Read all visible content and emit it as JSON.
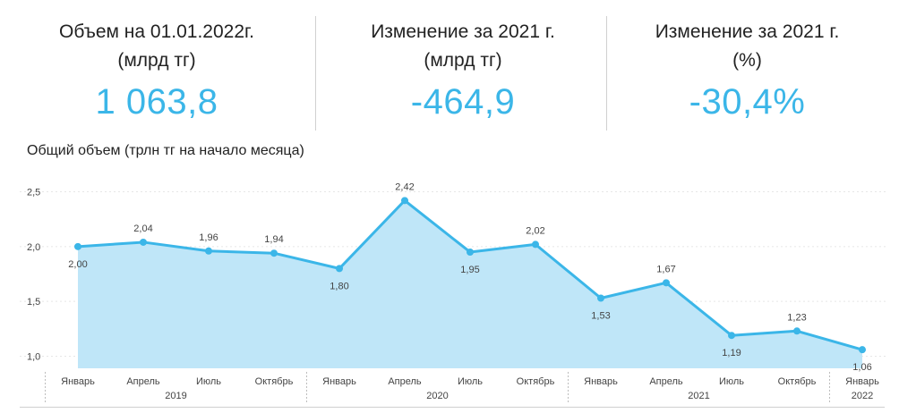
{
  "kpis": [
    {
      "label_line1": "Объем на 01.01.2022г.",
      "label_line2": "(млрд тг)",
      "value": "1 063,8"
    },
    {
      "label_line1": "Изменение за 2021 г.",
      "label_line2": "(млрд тг)",
      "value": "-464,9"
    },
    {
      "label_line1": "Изменение за 2021 г.",
      "label_line2": "(%)",
      "value": "-30,4%"
    }
  ],
  "chart_title": "Общий объем (трлн тг на начало месяца)",
  "colors": {
    "accent": "#3bb6e8",
    "area_fill": "#bfe6f8",
    "text": "#222222"
  },
  "chart_data": {
    "type": "area",
    "title": "Общий объем (трлн тг на начало месяца)",
    "x": [
      "Январь",
      "Апрель",
      "Июль",
      "Октябрь",
      "Январь",
      "Апрель",
      "Июль",
      "Октябрь",
      "Январь",
      "Апрель",
      "Июль",
      "Октябрь",
      "Январь"
    ],
    "year_groups": [
      {
        "year": "2019",
        "count": 4
      },
      {
        "year": "2020",
        "count": 4
      },
      {
        "year": "2021",
        "count": 4
      },
      {
        "year": "2022",
        "count": 1
      }
    ],
    "values": [
      2.0,
      2.04,
      1.96,
      1.94,
      1.8,
      2.42,
      1.95,
      2.02,
      1.53,
      1.67,
      1.19,
      1.23,
      1.06
    ],
    "value_labels": [
      "2,00",
      "2,04",
      "1,96",
      "1,94",
      "1,80",
      "2,42",
      "1,95",
      "2,02",
      "1,53",
      "1,67",
      "1,19",
      "1,23",
      "1,06"
    ],
    "label_positions": [
      "below",
      "above",
      "above",
      "above",
      "below",
      "above",
      "below",
      "above",
      "below",
      "above",
      "below",
      "above",
      "below"
    ],
    "y_ticks": [
      "1,0",
      "1,5",
      "2,0",
      "2,5"
    ],
    "y_tick_values": [
      1.0,
      1.5,
      2.0,
      2.5
    ],
    "ylim": [
      0.89,
      2.7
    ],
    "grid": true,
    "legend": "none"
  }
}
